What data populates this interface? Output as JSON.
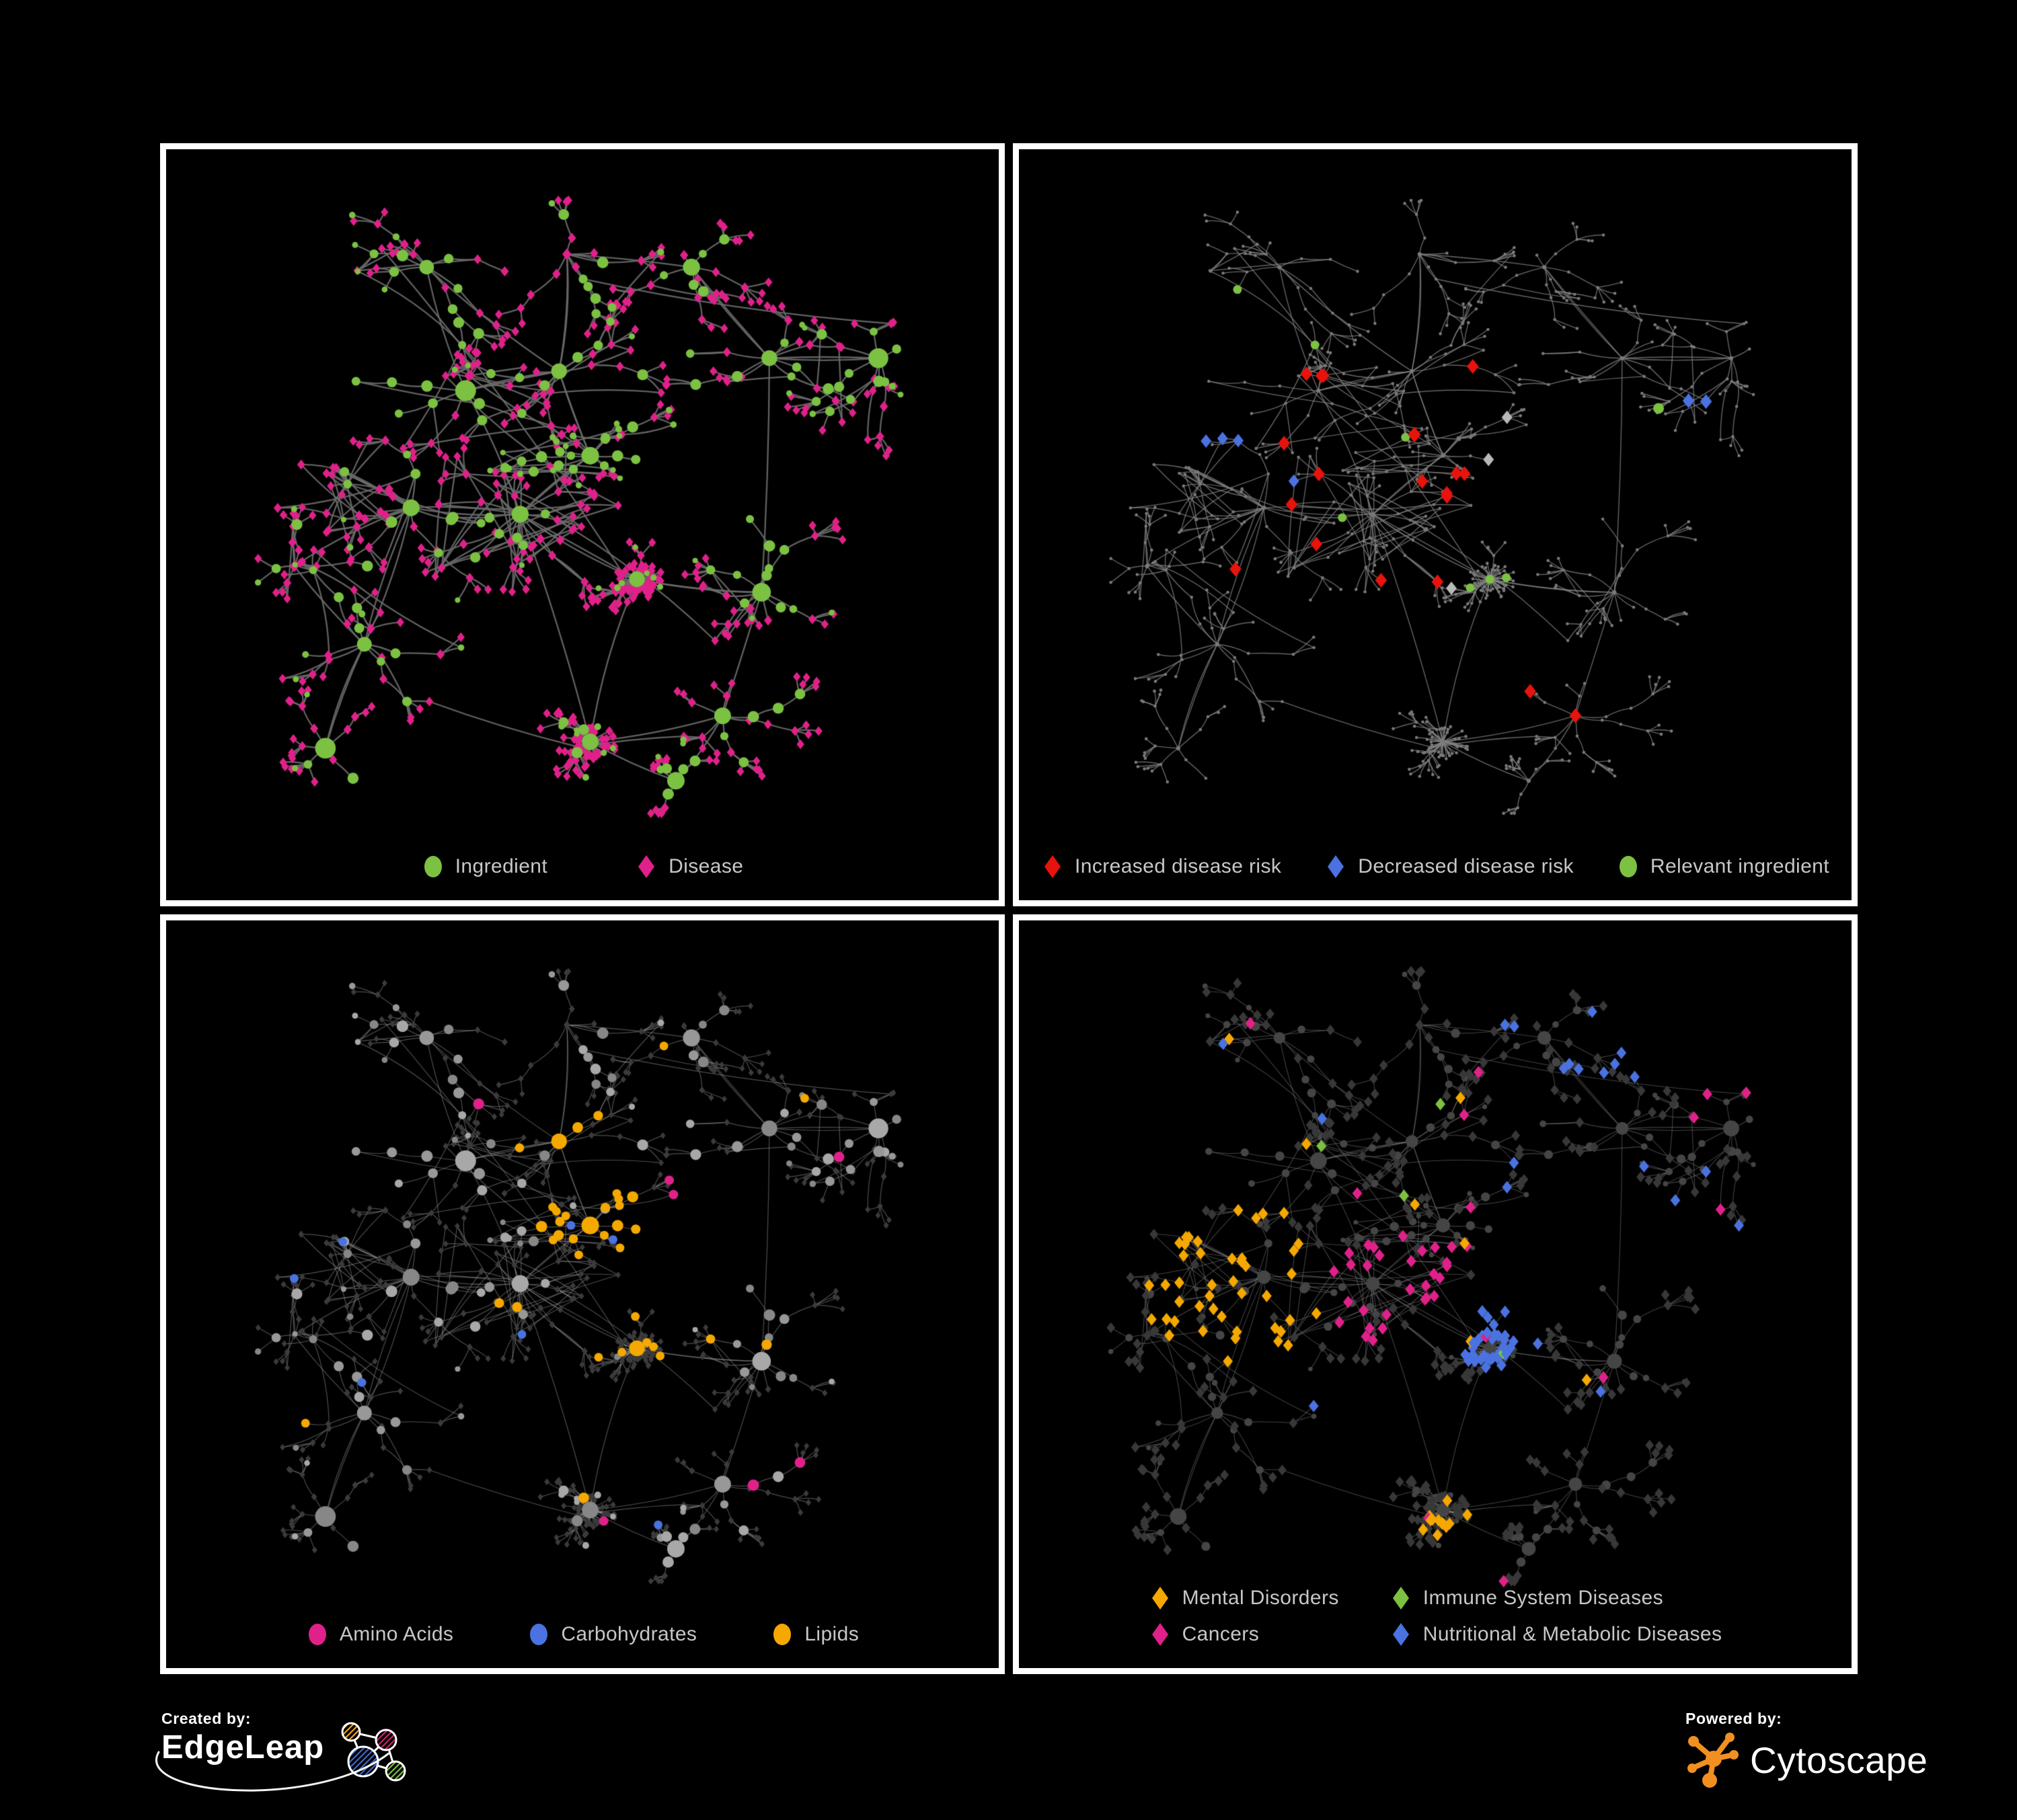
{
  "page": {
    "background": "#000000",
    "panel_border_color": "#ffffff",
    "legend_text_color": "#c7c7c7"
  },
  "footer": {
    "created_by": "Created by:",
    "left_brand": "EdgeLeap",
    "powered_by": "Powered by:",
    "right_brand": "Cytoscape",
    "cytoscape_orange": "#f19021",
    "edgeleap_node_colors": [
      "#f6a623",
      "#cc2368",
      "#4368c8",
      "#7cc142"
    ]
  },
  "chart_data": {
    "type": "network-multipanel",
    "description": "Four node-link views of the same ingredient-disease association network, colored by different attributes",
    "approx_nodes": 660,
    "approx_edges": 720,
    "shared_layout": {
      "seed": 1337,
      "long_edges": 8,
      "clusters": [
        {
          "x": 0.42,
          "y": 0.52,
          "branches": 14,
          "spread": 0.07,
          "mesh": 22
        },
        {
          "x": 0.28,
          "y": 0.51,
          "branches": 12,
          "spread": 0.065,
          "mesh": 16
        },
        {
          "x": 0.51,
          "y": 0.43,
          "branches": 10,
          "spread": 0.045,
          "mesh": 12,
          "ing_bias": 0.8
        },
        {
          "x": 0.47,
          "y": 0.3,
          "branches": 8,
          "spread": 0.06,
          "mesh": 6
        },
        {
          "x": 0.57,
          "y": 0.62,
          "branches": 10,
          "spread": 0.05,
          "mesh": 3,
          "star": true
        },
        {
          "x": 0.51,
          "y": 0.87,
          "branches": 11,
          "spread": 0.05,
          "mesh": 0,
          "star": true
        },
        {
          "x": 0.22,
          "y": 0.72,
          "branches": 8,
          "spread": 0.06,
          "mesh": 4
        },
        {
          "x": 0.3,
          "y": 0.14,
          "branches": 7,
          "spread": 0.06,
          "mesh": 2
        },
        {
          "x": 0.48,
          "y": 0.12,
          "branches": 6,
          "spread": 0.055,
          "mesh": 2
        },
        {
          "x": 0.64,
          "y": 0.14,
          "branches": 6,
          "spread": 0.05,
          "mesh": 2
        },
        {
          "x": 0.74,
          "y": 0.28,
          "branches": 8,
          "spread": 0.06,
          "mesh": 4
        },
        {
          "x": 0.88,
          "y": 0.28,
          "branches": 7,
          "spread": 0.055,
          "mesh": 2
        },
        {
          "x": 0.73,
          "y": 0.64,
          "branches": 9,
          "spread": 0.055,
          "mesh": 5
        },
        {
          "x": 0.68,
          "y": 0.83,
          "branches": 6,
          "spread": 0.05,
          "mesh": 2
        },
        {
          "x": 0.13,
          "y": 0.6,
          "branches": 5,
          "spread": 0.05,
          "mesh": 2
        },
        {
          "x": 0.17,
          "y": 0.88,
          "branches": 5,
          "spread": 0.05,
          "mesh": 0
        },
        {
          "x": 0.35,
          "y": 0.33,
          "branches": 7,
          "spread": 0.06,
          "mesh": 8
        },
        {
          "x": 0.62,
          "y": 0.93,
          "branches": 4,
          "spread": 0.04,
          "mesh": 0
        }
      ],
      "extra_links": [
        [
          0,
          2
        ],
        [
          2,
          3
        ],
        [
          0,
          4
        ],
        [
          4,
          12
        ],
        [
          0,
          5
        ],
        [
          6,
          1
        ],
        [
          7,
          16
        ],
        [
          16,
          0
        ],
        [
          8,
          3
        ],
        [
          9,
          10
        ],
        [
          10,
          11
        ],
        [
          12,
          13
        ],
        [
          14,
          1
        ],
        [
          15,
          6
        ],
        [
          17,
          5
        ],
        [
          10,
          12
        ],
        [
          3,
          16
        ],
        [
          1,
          0
        ]
      ]
    },
    "panels": [
      {
        "key": "ingredient-disease",
        "position": "top-left",
        "legend_gap": 130,
        "legend": [
          {
            "label": "Ingredient",
            "shape": "circle",
            "color": "#7cc142"
          },
          {
            "label": "Disease",
            "shape": "diamond",
            "color": "#e0218a"
          }
        ],
        "style": {
          "mode": "two-tone",
          "edge_color": "#6b6b6b",
          "edge_width": 2.3,
          "edge_alpha": 0.9,
          "ingredient_color": "#7cc142",
          "disease_color": "#e0218a"
        }
      },
      {
        "key": "disease-risk",
        "position": "top-right",
        "legend_gap": 64,
        "legend": [
          {
            "label": "Increased disease risk",
            "shape": "diamond",
            "color": "#e8130c"
          },
          {
            "label": "Decreased disease risk",
            "shape": "diamond",
            "color": "#4a72e0"
          },
          {
            "label": "Relevant ingredient",
            "shape": "circle",
            "color": "#7cc142"
          }
        ],
        "style": {
          "mode": "highlight",
          "edge_color": "#858585",
          "edge_width": 1.4,
          "edge_alpha": 0.75,
          "base_color": "#7a7a7a",
          "rules": [
            {
              "kind": "dis",
              "shape": "diamond",
              "color": "#e8130c",
              "size": 11,
              "rand": 1,
              "regions": [
                {
                  "x": 0.42,
                  "y": 0.45,
                  "r": 0.17,
                  "p": 0.1
                },
                {
                  "x": 0.3,
                  "y": 0.55,
                  "r": 0.08,
                  "p": 0.1
                },
                {
                  "x": 0.55,
                  "y": 0.35,
                  "r": 0.1,
                  "p": 0.06
                },
                {
                  "x": 0.47,
                  "y": 0.62,
                  "r": 0.06,
                  "p": 0.08
                }
              ]
            },
            {
              "kind": "dis",
              "shape": "diamond",
              "color": "#4a72e0",
              "size": 10,
              "rand": 2,
              "regions": [
                {
                  "x": 0.25,
                  "y": 0.42,
                  "r": 0.06,
                  "p": 0.3
                },
                {
                  "x": 0.33,
                  "y": 0.47,
                  "r": 0.04,
                  "p": 0.2
                }
              ]
            },
            {
              "kind": "dis",
              "shape": "diamond",
              "color": "#b9b9b9",
              "size": 10,
              "rand": 3,
              "regions": [
                {
                  "x": 0.44,
                  "y": 0.42,
                  "r": 0.16,
                  "p": 0.035
                },
                {
                  "x": 0.28,
                  "y": 0.38,
                  "r": 0.07,
                  "p": 0.06
                }
              ]
            },
            {
              "kind": "ing",
              "shape": "circle",
              "color": "#7cc142",
              "size": 6.5,
              "rand": 2,
              "regions": [
                {
                  "x": 0.37,
                  "y": 0.4,
                  "r": 0.16,
                  "p": 0.16
                },
                {
                  "x": 0.25,
                  "y": 0.22,
                  "r": 0.06,
                  "p": 0.2
                },
                {
                  "x": 0.55,
                  "y": 0.58,
                  "r": 0.08,
                  "p": 0.18
                },
                {
                  "x": 0.15,
                  "y": 0.33,
                  "r": 0.05,
                  "p": 0.2
                }
              ]
            }
          ],
          "forced": [
            {
              "x": 0.815,
              "y": 0.345,
              "shape": "diamond",
              "color": "#4a72e0",
              "size": 11
            },
            {
              "x": 0.845,
              "y": 0.352,
              "shape": "diamond",
              "color": "#4a72e0",
              "size": 11
            },
            {
              "x": 0.788,
              "y": 0.347,
              "shape": "circle",
              "color": "#7cc142",
              "size": 8
            },
            {
              "x": 0.63,
              "y": 0.75,
              "shape": "diamond",
              "color": "#e8130c",
              "size": 11
            },
            {
              "x": 0.665,
              "y": 0.82,
              "shape": "diamond",
              "color": "#e8130c",
              "size": 11
            },
            {
              "x": 0.55,
              "y": 0.3,
              "shape": "diamond",
              "color": "#e8130c",
              "size": 11
            },
            {
              "x": 0.36,
              "y": 0.57,
              "shape": "diamond",
              "color": "#e8130c",
              "size": 11
            },
            {
              "x": 0.52,
              "y": 0.63,
              "shape": "diamond",
              "color": "#b9b9b9",
              "size": 10
            },
            {
              "x": 0.6,
              "y": 0.47,
              "shape": "diamond",
              "color": "#b9b9b9",
              "size": 10
            }
          ]
        }
      },
      {
        "key": "nutrient-classes",
        "position": "bottom-left",
        "legend_gap": 110,
        "legend": [
          {
            "label": "Amino Acids",
            "shape": "circle",
            "color": "#e0218a"
          },
          {
            "label": "Carbohydrates",
            "shape": "circle",
            "color": "#4a72e0"
          },
          {
            "label": "Lipids",
            "shape": "circle",
            "color": "#f5a800"
          }
        ],
        "style": {
          "mode": "circles-colored",
          "edge_color": "#9a9a9a",
          "edge_width": 1.2,
          "edge_alpha": 0.5,
          "dim_diamond": "#3b3b3b",
          "gray_shades": [
            "#878787",
            "#989898",
            "#a8a8a8"
          ],
          "rules": [
            {
              "kind": "ing",
              "shape": "circle",
              "color": "#f5a800",
              "rand": 1,
              "min_size": 6.5,
              "regions": [
                {
                  "x": 0.51,
                  "y": 0.43,
                  "r": 0.075,
                  "p": 0.85
                },
                {
                  "x": 0.47,
                  "y": 0.3,
                  "r": 0.06,
                  "p": 0.5
                },
                {
                  "x": 0.4,
                  "y": 0.52,
                  "r": 0.05,
                  "p": 0.25
                },
                {
                  "x": 0.57,
                  "y": 0.62,
                  "r": 0.05,
                  "p": 0.5
                },
                {
                  "x": 0.5,
                  "y": 0.5,
                  "r": 0.6,
                  "p": 0.05
                }
              ]
            },
            {
              "kind": "ing",
              "shape": "circle",
              "color": "#4a72e0",
              "rand": 2,
              "min_size": 6.5,
              "regions": [
                {
                  "x": 0.51,
                  "y": 0.43,
                  "r": 0.06,
                  "p": 0.25
                },
                {
                  "x": 0.5,
                  "y": 0.5,
                  "r": 0.6,
                  "p": 0.02
                }
              ]
            },
            {
              "kind": "ing",
              "shape": "circle",
              "color": "#e0218a",
              "rand": 3,
              "min_size": 7,
              "regions": [
                {
                  "x": 0.5,
                  "y": 0.5,
                  "r": 0.65,
                  "p": 0.05
                }
              ]
            }
          ]
        }
      },
      {
        "key": "disease-categories",
        "position": "bottom-right",
        "legend_columns": 2,
        "legend_col_gap": 75,
        "legend": [
          {
            "label": "Mental Disorders",
            "shape": "diamond",
            "color": "#f5a800"
          },
          {
            "label": "Immune System Diseases",
            "shape": "diamond",
            "color": "#7cc142"
          },
          {
            "label": "Cancers",
            "shape": "diamond",
            "color": "#e0218a"
          },
          {
            "label": "Nutritional & Metabolic Diseases",
            "shape": "diamond",
            "color": "#4a72e0"
          }
        ],
        "style": {
          "mode": "diamonds-colored",
          "edge_color": "#9a9a9a",
          "edge_width": 1.1,
          "edge_alpha": 0.42,
          "dim_diamond": "#383838",
          "dim_circle": "#454545",
          "rules": [
            {
              "kind": "dis",
              "shape": "diamond",
              "color": "#f5a800",
              "rand": 1,
              "regions": [
                {
                  "x": 0.25,
                  "y": 0.54,
                  "r": 0.12,
                  "p": 0.85
                },
                {
                  "x": 0.3,
                  "y": 0.4,
                  "r": 0.05,
                  "p": 0.3
                },
                {
                  "x": 0.52,
                  "y": 0.92,
                  "r": 0.06,
                  "p": 0.3
                },
                {
                  "x": 0.5,
                  "y": 0.5,
                  "r": 0.65,
                  "p": 0.015
                }
              ]
            },
            {
              "kind": "dis",
              "shape": "diamond",
              "color": "#e0218a",
              "rand": 2,
              "regions": [
                {
                  "x": 0.44,
                  "y": 0.52,
                  "r": 0.1,
                  "p": 0.75
                },
                {
                  "x": 0.52,
                  "y": 0.45,
                  "r": 0.06,
                  "p": 0.35
                },
                {
                  "x": 0.88,
                  "y": 0.27,
                  "r": 0.055,
                  "p": 0.75
                },
                {
                  "x": 0.5,
                  "y": 0.5,
                  "r": 0.65,
                  "p": 0.012
                }
              ]
            },
            {
              "kind": "dis",
              "shape": "diamond",
              "color": "#4a72e0",
              "rand": 3,
              "regions": [
                {
                  "x": 0.57,
                  "y": 0.58,
                  "r": 0.07,
                  "p": 0.8
                },
                {
                  "x": 0.75,
                  "y": 0.14,
                  "r": 0.1,
                  "p": 0.45
                },
                {
                  "x": 0.87,
                  "y": 0.42,
                  "r": 0.08,
                  "p": 0.4
                },
                {
                  "x": 0.63,
                  "y": 0.09,
                  "r": 0.07,
                  "p": 0.4
                },
                {
                  "x": 0.32,
                  "y": 0.67,
                  "r": 0.05,
                  "p": 0.35
                },
                {
                  "x": 0.5,
                  "y": 0.5,
                  "r": 0.65,
                  "p": 0.02
                }
              ]
            },
            {
              "kind": "dis",
              "shape": "diamond",
              "color": "#7cc142",
              "rand": 4,
              "regions": [
                {
                  "x": 0.45,
                  "y": 0.45,
                  "r": 0.25,
                  "p": 0.02
                }
              ]
            }
          ]
        }
      }
    ]
  }
}
